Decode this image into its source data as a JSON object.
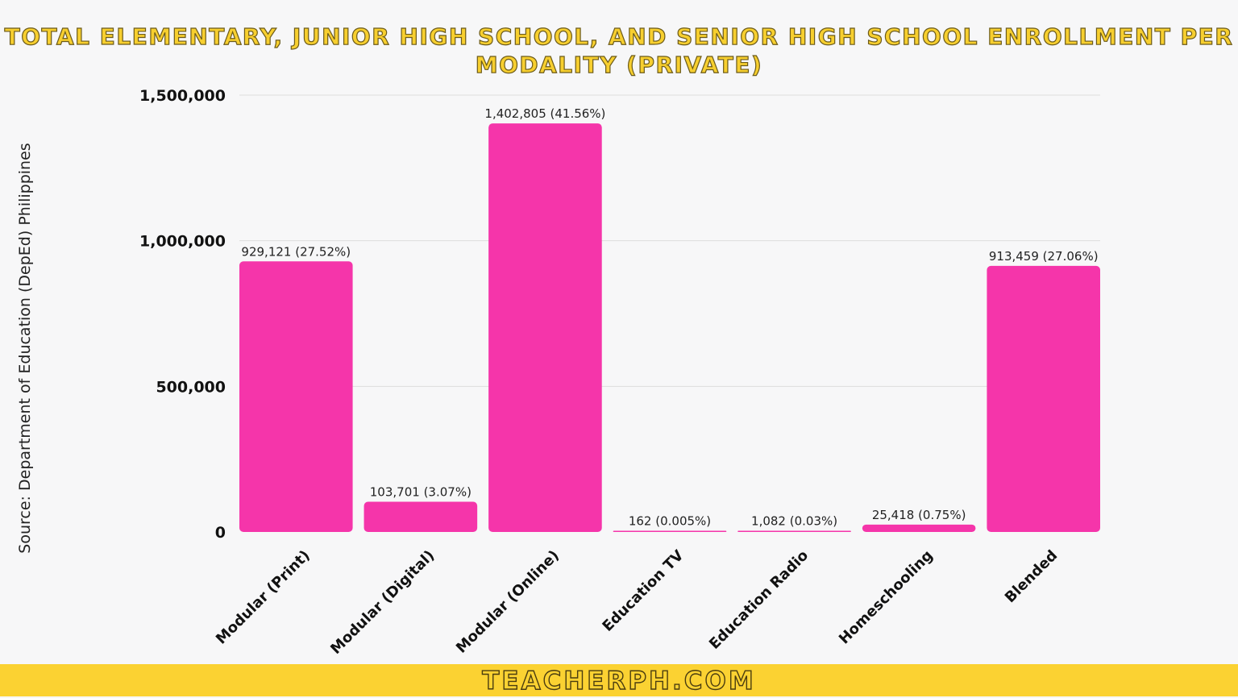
{
  "chart_data": {
    "type": "bar",
    "title": "TOTAL ELEMENTARY, JUNIOR HIGH SCHOOL, AND SENIOR HIGH SCHOOL ENROLLMENT PER MODALITY (PRIVATE)",
    "categories": [
      "Modular (Print)",
      "Modular (Digital)",
      "Modular (Online)",
      "Education TV",
      "Education Radio",
      "Homeschooling",
      "Blended"
    ],
    "values": [
      929121,
      103701,
      1402805,
      162,
      1082,
      25418,
      913459
    ],
    "data_labels": [
      "929,121 (27.52%)",
      "103,701 (3.07%)",
      "1,402,805 (41.56%)",
      "162 (0.005%)",
      "1,082 (0.03%)",
      "25,418 (0.75%)",
      "913,459 (27.06%)"
    ],
    "yticks": [
      0,
      500000,
      1000000,
      1500000
    ],
    "ytick_labels": [
      "0",
      "500,000",
      "1,000,000",
      "1,500,000"
    ],
    "ylim": [
      0,
      1500000
    ],
    "grid": true,
    "bar_color": "#f535aa",
    "xlabel": "",
    "ylabel": ""
  },
  "source_label": "Source:",
  "source_text": " Department of Education (DepEd) Philippines",
  "footer": "TEACHERPH.COM",
  "colors": {
    "title": "#f7cf2f",
    "footer_bg": "#fbd232"
  }
}
